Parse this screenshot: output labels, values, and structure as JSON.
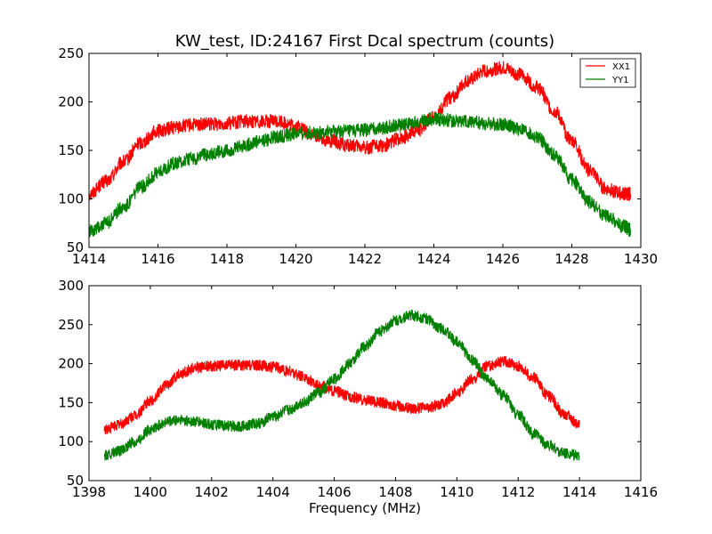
{
  "chart_data": [
    {
      "type": "line",
      "title": "KW_test, ID:24167 First Dcal spectrum (counts)",
      "xlabel": "",
      "ylabel": "",
      "xlim": [
        1414,
        1430
      ],
      "ylim": [
        50,
        250
      ],
      "xticks": [
        "1414",
        "1416",
        "1418",
        "1420",
        "1422",
        "1424",
        "1426",
        "1428",
        "1430"
      ],
      "yticks": [
        "50",
        "100",
        "150",
        "200",
        "250"
      ],
      "legend": "top-right",
      "grid": false,
      "series": [
        {
          "name": "XX1",
          "color": "#ff0000",
          "x": [
            1414.0,
            1414.5,
            1415.0,
            1415.5,
            1416.0,
            1416.5,
            1417.0,
            1417.5,
            1418.0,
            1418.5,
            1419.0,
            1419.5,
            1420.0,
            1420.5,
            1421.0,
            1421.5,
            1422.0,
            1422.5,
            1423.0,
            1423.5,
            1424.0,
            1424.5,
            1425.0,
            1425.5,
            1426.0,
            1426.5,
            1427.0,
            1427.5,
            1428.0,
            1428.5,
            1429.0,
            1429.5,
            1429.7
          ],
          "y": [
            105,
            118,
            138,
            158,
            170,
            174,
            176,
            177,
            178,
            180,
            180,
            180,
            175,
            166,
            160,
            155,
            153,
            155,
            162,
            170,
            185,
            205,
            222,
            232,
            235,
            228,
            215,
            190,
            160,
            130,
            110,
            105,
            105
          ]
        },
        {
          "name": "YY1",
          "color": "#008000",
          "x": [
            1414.0,
            1414.5,
            1415.0,
            1415.5,
            1416.0,
            1416.5,
            1417.0,
            1417.5,
            1418.0,
            1418.5,
            1419.0,
            1419.5,
            1420.0,
            1420.5,
            1421.0,
            1421.5,
            1422.0,
            1422.5,
            1423.0,
            1423.5,
            1424.0,
            1424.5,
            1425.0,
            1425.5,
            1426.0,
            1426.5,
            1427.0,
            1427.5,
            1428.0,
            1428.5,
            1429.0,
            1429.5,
            1429.7
          ],
          "y": [
            67,
            75,
            92,
            112,
            127,
            137,
            142,
            146,
            150,
            155,
            160,
            164,
            167,
            168,
            169,
            170,
            171,
            173,
            176,
            179,
            182,
            181,
            180,
            178,
            177,
            172,
            163,
            145,
            120,
            97,
            82,
            72,
            68
          ]
        }
      ]
    },
    {
      "type": "line",
      "title": "",
      "xlabel": "Frequency (MHz)",
      "ylabel": "",
      "xlim": [
        1398,
        1416
      ],
      "ylim": [
        50,
        300
      ],
      "xticks": [
        "1398",
        "1400",
        "1402",
        "1404",
        "1406",
        "1408",
        "1410",
        "1412",
        "1414",
        "1416"
      ],
      "yticks": [
        "50",
        "100",
        "150",
        "200",
        "250",
        "300"
      ],
      "grid": false,
      "series": [
        {
          "color": "#ff0000",
          "x": [
            1398.5,
            1399.0,
            1399.5,
            1400.0,
            1400.5,
            1401.0,
            1401.5,
            1402.0,
            1402.5,
            1403.0,
            1403.5,
            1404.0,
            1404.5,
            1405.0,
            1405.5,
            1406.0,
            1406.5,
            1407.0,
            1407.5,
            1408.0,
            1408.5,
            1409.0,
            1409.5,
            1410.0,
            1410.5,
            1411.0,
            1411.5,
            1412.0,
            1412.5,
            1413.0,
            1413.5,
            1414.0
          ],
          "y": [
            115,
            122,
            133,
            152,
            172,
            188,
            195,
            197,
            198,
            198,
            198,
            196,
            190,
            183,
            172,
            165,
            158,
            153,
            150,
            146,
            143,
            143,
            148,
            162,
            180,
            197,
            203,
            197,
            182,
            158,
            135,
            122
          ]
        },
        {
          "color": "#008000",
          "x": [
            1398.5,
            1399.0,
            1399.5,
            1400.0,
            1400.5,
            1401.0,
            1401.5,
            1402.0,
            1402.5,
            1403.0,
            1403.5,
            1404.0,
            1404.5,
            1405.0,
            1405.5,
            1406.0,
            1406.5,
            1407.0,
            1407.5,
            1408.0,
            1408.5,
            1409.0,
            1409.5,
            1410.0,
            1410.5,
            1411.0,
            1411.5,
            1412.0,
            1412.5,
            1413.0,
            1413.5,
            1414.0
          ],
          "y": [
            82,
            88,
            100,
            115,
            125,
            128,
            125,
            122,
            120,
            120,
            123,
            132,
            140,
            150,
            163,
            180,
            200,
            222,
            242,
            255,
            262,
            258,
            245,
            228,
            205,
            180,
            160,
            135,
            110,
            95,
            85,
            82
          ]
        }
      ]
    }
  ]
}
